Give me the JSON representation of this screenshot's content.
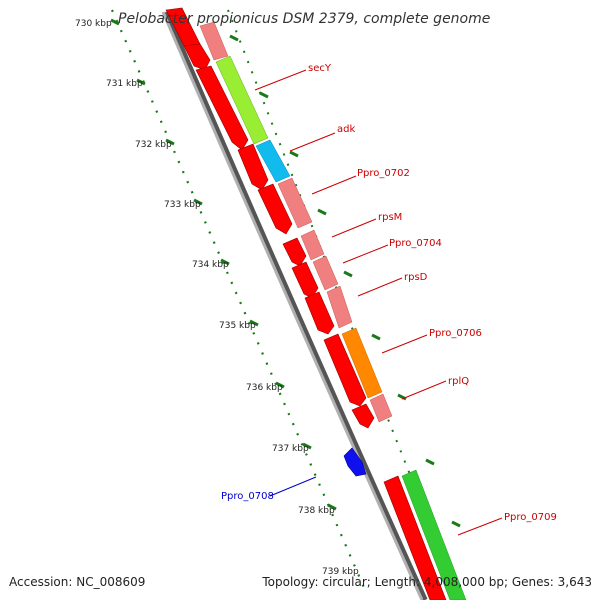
{
  "title": "Pelobacter propionicus DSM 2379, complete genome",
  "footer": {
    "accession": "Accession: NC_008609",
    "summary": "Topology: circular; Length: 4,008,000 bp; Genes: 3,643"
  },
  "ticks": [
    {
      "label": "730 kbp"
    },
    {
      "label": "731 kbp"
    },
    {
      "label": "732 kbp"
    },
    {
      "label": "733 kbp"
    },
    {
      "label": "734 kbp"
    },
    {
      "label": "735 kbp"
    },
    {
      "label": "736 kbp"
    },
    {
      "label": "737 kbp"
    },
    {
      "label": "738 kbp"
    },
    {
      "label": "739 kbp"
    }
  ],
  "genes": [
    {
      "name": "secY",
      "color": "#cc0000"
    },
    {
      "name": "adk",
      "color": "#cc0000"
    },
    {
      "name": "Ppro_0702",
      "color": "#cc0000"
    },
    {
      "name": "rpsM",
      "color": "#cc0000"
    },
    {
      "name": "Ppro_0704",
      "color": "#cc0000"
    },
    {
      "name": "rpsD",
      "color": "#cc0000"
    },
    {
      "name": "Ppro_0706",
      "color": "#cc0000"
    },
    {
      "name": "rplQ",
      "color": "#cc0000"
    },
    {
      "name": "Ppro_0708",
      "color": "#0000cc"
    },
    {
      "name": "Ppro_0709",
      "color": "#cc0000"
    }
  ],
  "colors": {
    "cds": "#ff0000",
    "cds_light": "#f08080",
    "green": "#99ee33",
    "cyan": "#11bbee",
    "orange": "#ff8800",
    "blue": "#1010ee",
    "bright_green": "#33cc33",
    "tick": "#1a7a1a",
    "backbone": "#888888"
  }
}
